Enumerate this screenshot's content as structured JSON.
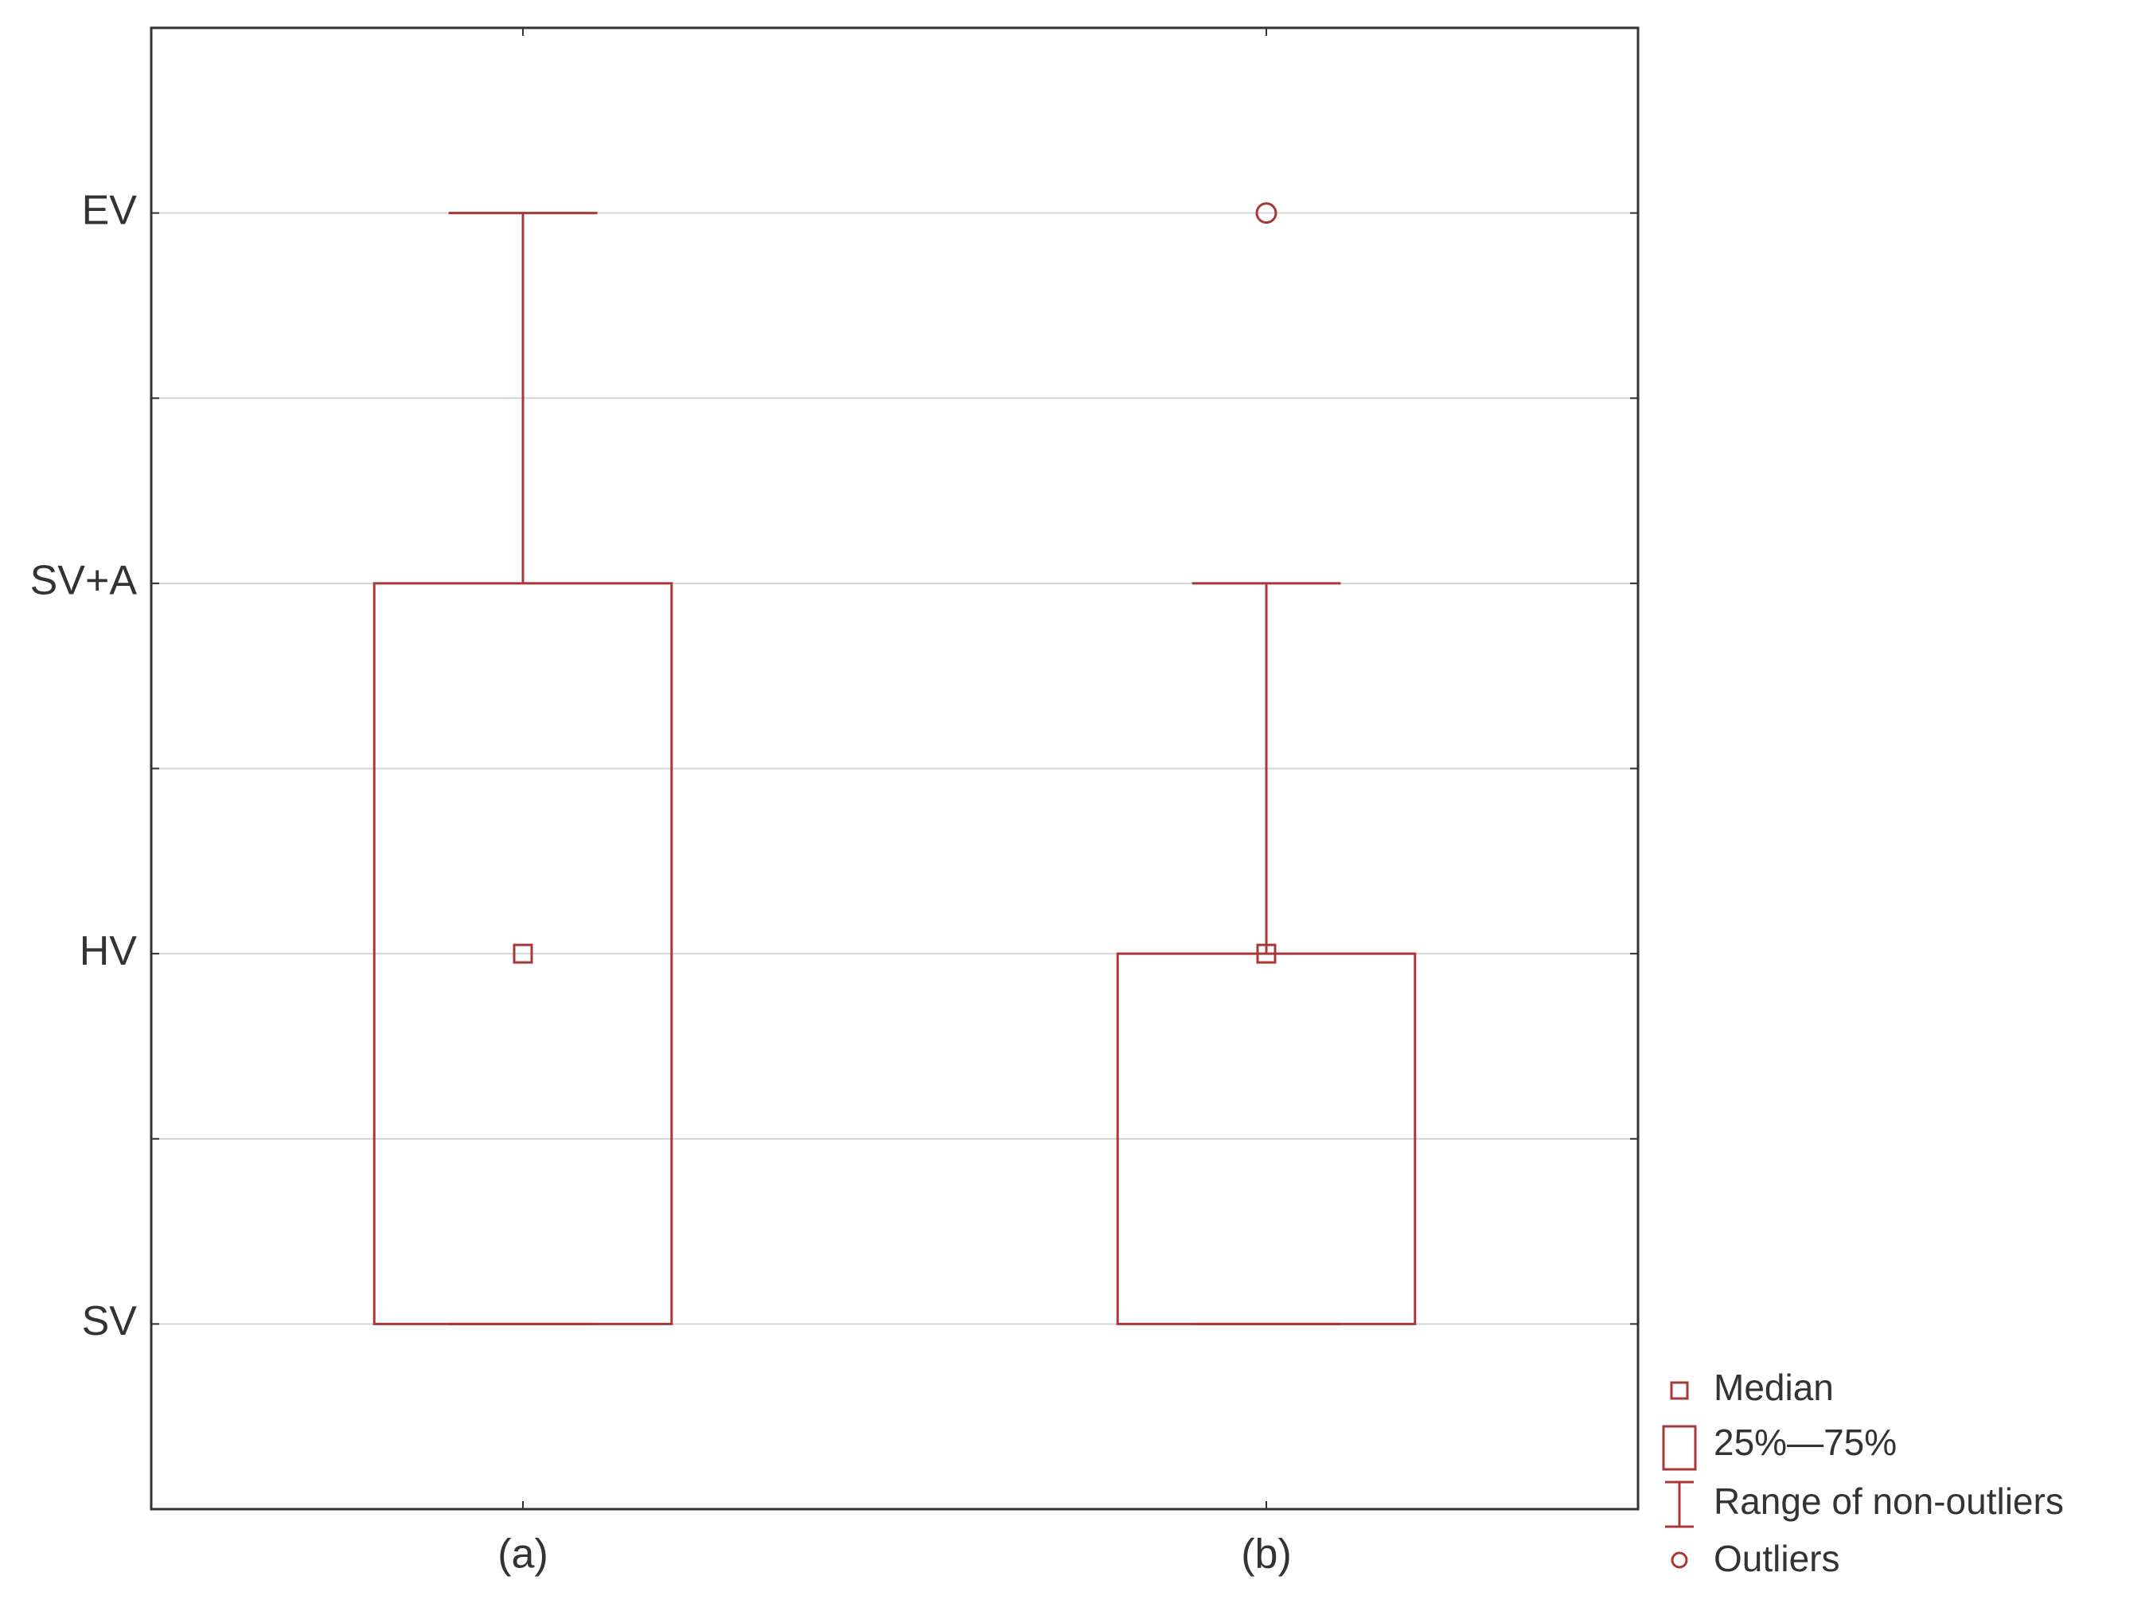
{
  "chart_data": {
    "type": "box",
    "categories": [
      "(a)",
      "(b)"
    ],
    "boxes": [
      {
        "min": 1,
        "q1": 1,
        "median": 2,
        "q3": 3,
        "max": 4,
        "outliers": []
      },
      {
        "min": 1,
        "q1": 1,
        "median": 2,
        "q3": 2,
        "max": 3,
        "outliers": [
          4
        ]
      }
    ],
    "color": "#a83838",
    "ylim": [
      0.5,
      4.5
    ],
    "yticks": [
      {
        "value": 1,
        "label": "SV"
      },
      {
        "value": 2,
        "label": "HV"
      },
      {
        "value": 3,
        "label": "SV+A"
      },
      {
        "value": 4,
        "label": "EV"
      }
    ],
    "minor_yticks": [
      1.5,
      2.5,
      3.5
    ],
    "grid": true,
    "legend": {
      "median": "Median",
      "box": "25%—75%",
      "whisker": "Range of non-outliers",
      "outliers": "Outliers"
    },
    "legend_position": "bottom-right-outside"
  }
}
